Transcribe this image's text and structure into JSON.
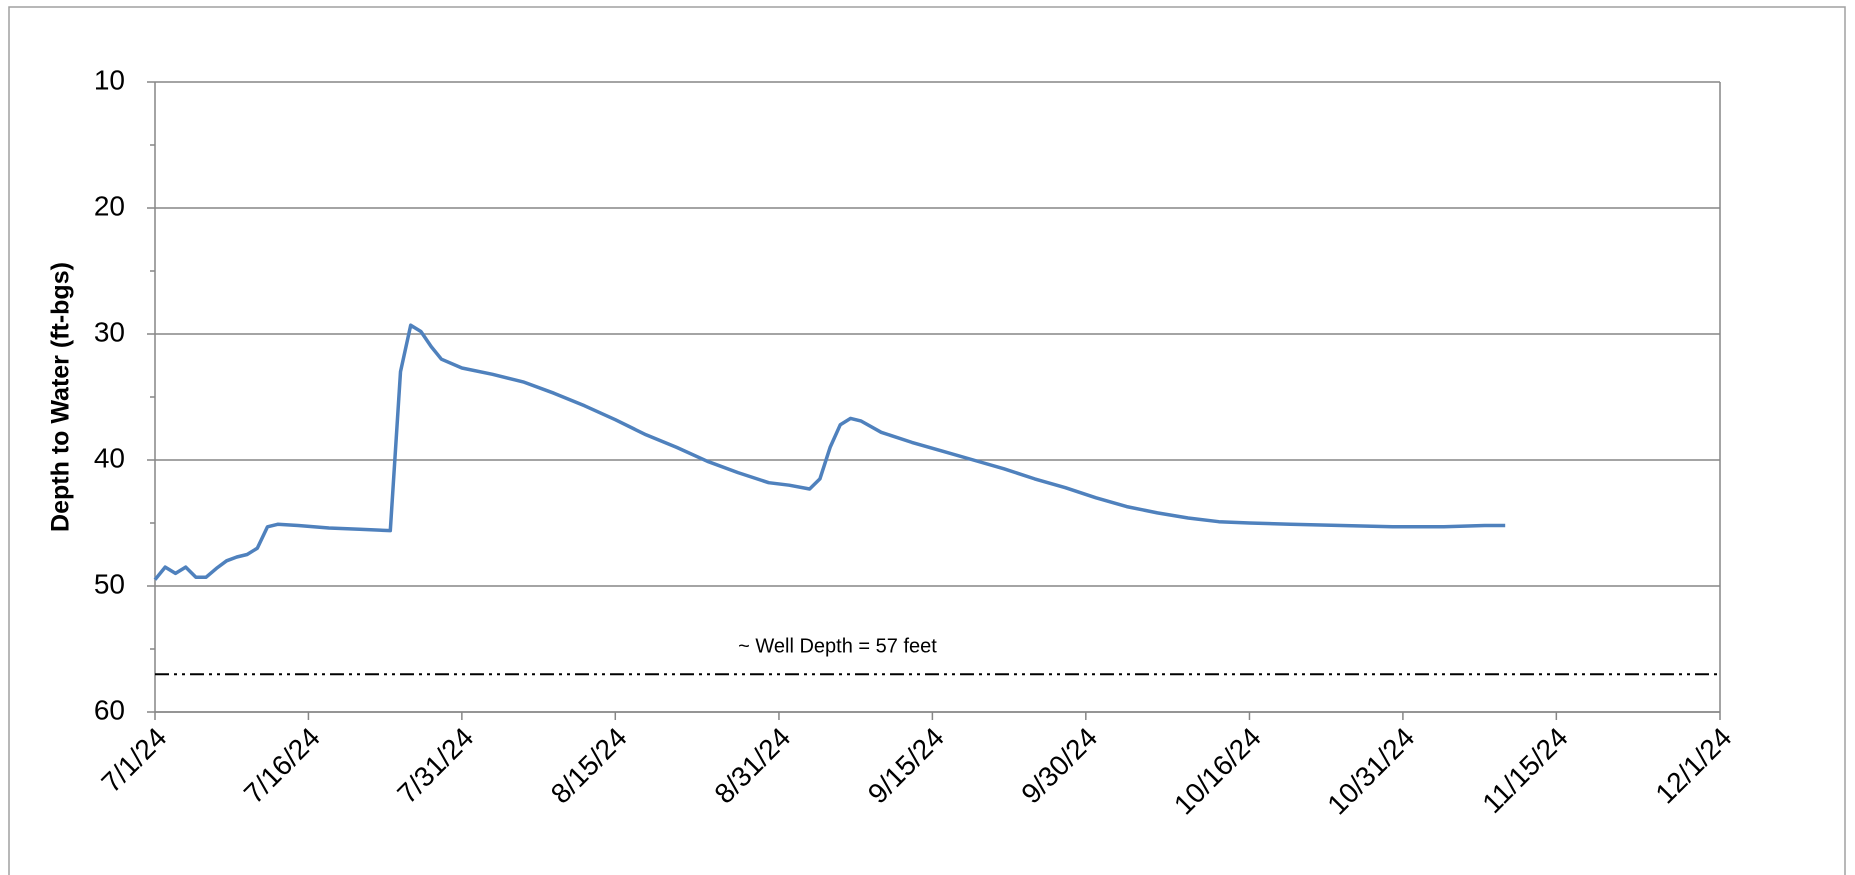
{
  "chart_data": {
    "type": "line",
    "y_label": "Depth to Water (ft-bgs)",
    "ylim": [
      10,
      60
    ],
    "y_reversed": true,
    "yticks": [
      10,
      20,
      30,
      40,
      50,
      60
    ],
    "yminorticks": [
      15,
      25,
      35,
      45,
      55
    ],
    "grid": true,
    "xlim": [
      "2024-07-01",
      "2024-12-01"
    ],
    "xticks": [
      {
        "value": "2024-07-01",
        "label": "7/1/24"
      },
      {
        "value": "2024-07-16",
        "label": "7/16/24"
      },
      {
        "value": "2024-07-31",
        "label": "7/31/24"
      },
      {
        "value": "2024-08-15",
        "label": "8/15/24"
      },
      {
        "value": "2024-08-31",
        "label": "8/31/24"
      },
      {
        "value": "2024-09-15",
        "label": "9/15/24"
      },
      {
        "value": "2024-09-30",
        "label": "9/30/24"
      },
      {
        "value": "2024-10-16",
        "label": "10/16/24"
      },
      {
        "value": "2024-10-31",
        "label": "10/31/24"
      },
      {
        "value": "2024-11-15",
        "label": "11/15/24"
      },
      {
        "value": "2024-12-01",
        "label": "12/1/24"
      }
    ],
    "color": "#4f81bd",
    "x": [
      "2024-07-01",
      "2024-07-02",
      "2024-07-03",
      "2024-07-04",
      "2024-07-05",
      "2024-07-06",
      "2024-07-07",
      "2024-07-08",
      "2024-07-09",
      "2024-07-10",
      "2024-07-11",
      "2024-07-12",
      "2024-07-13",
      "2024-07-15",
      "2024-07-18",
      "2024-07-21",
      "2024-07-24",
      "2024-07-25",
      "2024-07-26",
      "2024-07-27",
      "2024-07-28",
      "2024-07-29",
      "2024-07-31",
      "2024-08-03",
      "2024-08-06",
      "2024-08-09",
      "2024-08-12",
      "2024-08-15",
      "2024-08-18",
      "2024-08-21",
      "2024-08-24",
      "2024-08-27",
      "2024-08-30",
      "2024-09-01",
      "2024-09-03",
      "2024-09-04",
      "2024-09-05",
      "2024-09-06",
      "2024-09-07",
      "2024-09-08",
      "2024-09-10",
      "2024-09-13",
      "2024-09-16",
      "2024-09-19",
      "2024-09-22",
      "2024-09-25",
      "2024-09-28",
      "2024-10-01",
      "2024-10-04",
      "2024-10-07",
      "2024-10-10",
      "2024-10-13",
      "2024-10-16",
      "2024-10-20",
      "2024-10-25",
      "2024-10-30",
      "2024-11-04",
      "2024-11-08",
      "2024-11-10"
    ],
    "values": [
      49.5,
      48.5,
      49.0,
      48.5,
      49.3,
      49.3,
      48.6,
      48.0,
      47.7,
      47.5,
      47.0,
      45.3,
      45.1,
      45.2,
      45.4,
      45.5,
      45.6,
      33.0,
      29.3,
      29.8,
      31.0,
      32.0,
      32.7,
      33.2,
      33.8,
      34.7,
      35.7,
      36.8,
      38.0,
      39.0,
      40.1,
      41.0,
      41.8,
      42.0,
      42.3,
      41.5,
      39.0,
      37.2,
      36.7,
      36.9,
      37.8,
      38.6,
      39.3,
      40.0,
      40.7,
      41.5,
      42.2,
      43.0,
      43.7,
      44.2,
      44.6,
      44.9,
      45.0,
      45.1,
      45.2,
      45.3,
      45.3,
      45.2,
      45.2
    ],
    "reference_line": {
      "value": 57,
      "label": "~ Well Depth = 57 feet",
      "color": "#000000"
    }
  }
}
